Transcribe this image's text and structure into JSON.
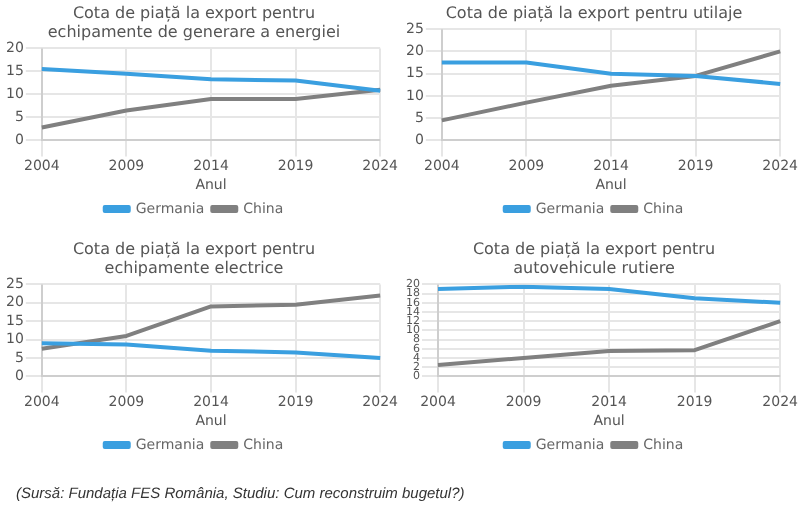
{
  "chart_data": [
    {
      "type": "line",
      "title": "Cota de piață la export pentru echipamente de generare a energiei",
      "xlabel": "Anul",
      "categories": [
        "2004",
        "2009",
        "2014",
        "2019",
        "2024"
      ],
      "ylim": [
        0,
        20
      ],
      "yticks": [
        0,
        5,
        10,
        15,
        20
      ],
      "grid": true,
      "legend": "bottom",
      "series": [
        {
          "name": "Germania",
          "color": "#3a9fe0",
          "values": [
            15.5,
            14.5,
            13.3,
            13,
            10.8
          ]
        },
        {
          "name": "China",
          "color": "#808080",
          "values": [
            2.8,
            6.5,
            9,
            9,
            11
          ]
        }
      ]
    },
    {
      "type": "line",
      "title": "Cota de piață la export pentru utilaje",
      "xlabel": "Anul",
      "categories": [
        "2004",
        "2009",
        "2014",
        "2019",
        "2024"
      ],
      "ylim": [
        0,
        25
      ],
      "yticks": [
        0,
        5,
        10,
        15,
        20,
        25
      ],
      "grid": true,
      "legend": "bottom",
      "series": [
        {
          "name": "Germania",
          "color": "#3a9fe0",
          "values": [
            17.5,
            17.5,
            15,
            14.5,
            12.7
          ]
        },
        {
          "name": "China",
          "color": "#808080",
          "values": [
            4.5,
            8.5,
            12.3,
            14.5,
            20
          ]
        }
      ]
    },
    {
      "type": "line",
      "title": "Cota de piață la export pentru echipamente electrice",
      "xlabel": "Anul",
      "categories": [
        "2004",
        "2009",
        "2014",
        "2019",
        "2024"
      ],
      "ylim": [
        0,
        25
      ],
      "yticks": [
        0,
        5,
        10,
        15,
        20,
        25
      ],
      "grid": true,
      "legend": "bottom",
      "series": [
        {
          "name": "Germania",
          "color": "#3a9fe0",
          "values": [
            9,
            8.7,
            7,
            6.5,
            5
          ]
        },
        {
          "name": "China",
          "color": "#808080",
          "values": [
            7.5,
            11,
            19,
            19.5,
            22
          ]
        }
      ]
    },
    {
      "type": "line",
      "title": "Cota de piață la export pentru autovehicule rutiere",
      "xlabel": "Anul",
      "categories": [
        "2004",
        "2009",
        "2014",
        "2019",
        "2024"
      ],
      "ylim": [
        0,
        20
      ],
      "yticks": [
        0,
        2,
        4,
        6,
        8,
        10,
        12,
        14,
        16,
        18,
        20
      ],
      "grid": true,
      "legend": "bottom",
      "series": [
        {
          "name": "Germania",
          "color": "#3a9fe0",
          "values": [
            19,
            19.5,
            19,
            17,
            16
          ]
        },
        {
          "name": "China",
          "color": "#808080",
          "values": [
            2.5,
            4,
            5.5,
            5.7,
            12
          ]
        }
      ],
      "annotations": [
        "(Sursă: Fundația FES România, Studiu: Cum reconstruim bugetul?)"
      ]
    }
  ]
}
